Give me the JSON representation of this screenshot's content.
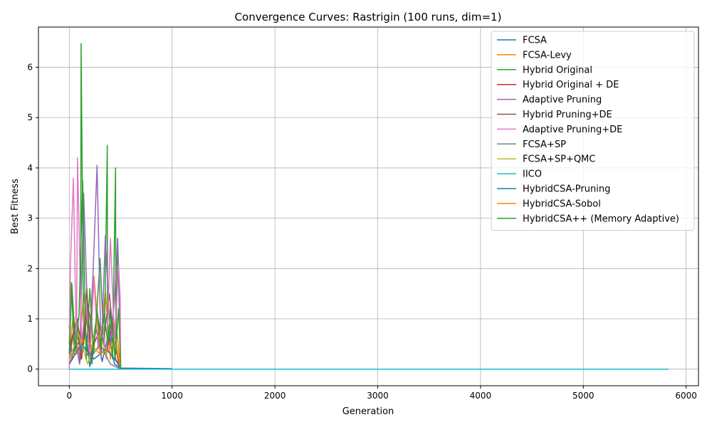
{
  "chart_data": {
    "type": "line",
    "title": "Convergence Curves: Rastrigin (100 runs, dim=1)",
    "xlabel": "Generation",
    "ylabel": "Best Fitness",
    "xlim": [
      -300,
      6120
    ],
    "ylim": [
      -0.33,
      6.8
    ],
    "xticks": [
      0,
      1000,
      2000,
      3000,
      4000,
      5000,
      6000
    ],
    "yticks": [
      0,
      1,
      2,
      3,
      4,
      5,
      6
    ],
    "grid": true,
    "legend_position": "top-right",
    "series": [
      {
        "name": "FCSA",
        "color": "#1f77b4",
        "x": [
          0,
          30,
          60,
          100,
          150,
          200,
          260,
          320,
          380,
          440,
          500,
          1000
        ],
        "y": [
          0.85,
          0.2,
          0.6,
          0.1,
          0.9,
          0.05,
          0.8,
          0.15,
          0.7,
          0.1,
          0.02,
          0.01
        ]
      },
      {
        "name": "FCSA-Levy",
        "color": "#ff7f0e",
        "x": [
          0,
          40,
          90,
          140,
          200,
          240,
          300,
          350,
          400,
          450,
          500
        ],
        "y": [
          0.3,
          1.1,
          0.2,
          1.5,
          0.4,
          1.85,
          0.3,
          1.55,
          0.2,
          1.0,
          0.0
        ]
      },
      {
        "name": "Hybrid Original",
        "color": "#2ca02c",
        "x": [
          0,
          20,
          50,
          80,
          110,
          115,
          140,
          180,
          220,
          260,
          300,
          340,
          370,
          372,
          400,
          420,
          450,
          453,
          470,
          490,
          500
        ],
        "y": [
          0.5,
          1.72,
          0.3,
          1.0,
          0.2,
          6.47,
          0.5,
          1.2,
          0.1,
          0.9,
          2.2,
          0.3,
          4.45,
          0.4,
          1.2,
          0.2,
          4.0,
          0.3,
          2.6,
          1.2,
          0.0
        ]
      },
      {
        "name": "Hybrid Original + DE",
        "color": "#d62728",
        "x": [
          0,
          60,
          120,
          180,
          240,
          300,
          360,
          420,
          480,
          500
        ],
        "y": [
          0.4,
          0.9,
          0.2,
          1.3,
          0.5,
          0.8,
          0.3,
          0.9,
          0.1,
          0.0
        ]
      },
      {
        "name": "Adaptive Pruning",
        "color": "#9467bd",
        "x": [
          0,
          50,
          100,
          140,
          190,
          230,
          270,
          310,
          350,
          400,
          440,
          470,
          500
        ],
        "y": [
          0.2,
          0.8,
          0.1,
          3.5,
          0.3,
          1.85,
          4.05,
          0.2,
          2.65,
          0.5,
          1.4,
          2.6,
          0.0
        ]
      },
      {
        "name": "Hybrid Pruning+DE",
        "color": "#8c564b",
        "x": [
          0,
          70,
          130,
          170,
          210,
          270,
          330,
          390,
          450,
          500
        ],
        "y": [
          0.3,
          1.0,
          0.4,
          1.6,
          0.2,
          1.1,
          0.5,
          1.5,
          0.2,
          0.0
        ]
      },
      {
        "name": "Adaptive Pruning+DE",
        "color": "#e377c2",
        "x": [
          0,
          10,
          40,
          70,
          80,
          120,
          160,
          200,
          240,
          280,
          320,
          360,
          400,
          440,
          480,
          495,
          500
        ],
        "y": [
          0.0,
          2.0,
          3.8,
          0.3,
          4.2,
          0.5,
          1.4,
          0.2,
          1.8,
          0.4,
          0.9,
          0.2,
          2.6,
          0.5,
          2.1,
          1.4,
          0.0
        ]
      },
      {
        "name": "FCSA+SP",
        "color": "#7f7f7f",
        "x": [
          0,
          100,
          200,
          300,
          400,
          500
        ],
        "y": [
          0.1,
          0.6,
          0.2,
          0.5,
          0.1,
          0.0
        ]
      },
      {
        "name": "FCSA+SP+QMC",
        "color": "#bcbd22",
        "x": [
          0,
          90,
          180,
          270,
          360,
          450,
          500
        ],
        "y": [
          0.2,
          0.7,
          0.1,
          0.9,
          0.3,
          0.6,
          0.0
        ]
      },
      {
        "name": "IICO",
        "color": "#17becf",
        "x": [
          0,
          1000,
          5830
        ],
        "y": [
          0.0,
          0.0,
          0.0
        ]
      },
      {
        "name": "HybridCSA-Pruning",
        "color": "#1f77b4",
        "x": [
          0,
          120,
          240,
          360,
          480,
          500
        ],
        "y": [
          0.1,
          0.5,
          0.2,
          0.4,
          0.1,
          0.0
        ]
      },
      {
        "name": "HybridCSA-Sobol",
        "color": "#ff7f0e",
        "x": [
          0,
          150,
          300,
          450,
          500
        ],
        "y": [
          0.2,
          0.6,
          0.3,
          0.5,
          0.0
        ]
      },
      {
        "name": "HybridCSA++ (Memory Adaptive)",
        "color": "#2ca02c",
        "x": [
          0,
          25,
          60,
          95,
          130,
          165,
          200,
          235,
          270,
          305,
          340,
          375,
          410,
          445,
          480,
          500
        ],
        "y": [
          0.3,
          1.7,
          0.4,
          1.1,
          3.75,
          0.2,
          1.6,
          0.3,
          1.2,
          0.4,
          1.1,
          0.5,
          1.0,
          0.2,
          1.2,
          0.0
        ]
      }
    ]
  }
}
